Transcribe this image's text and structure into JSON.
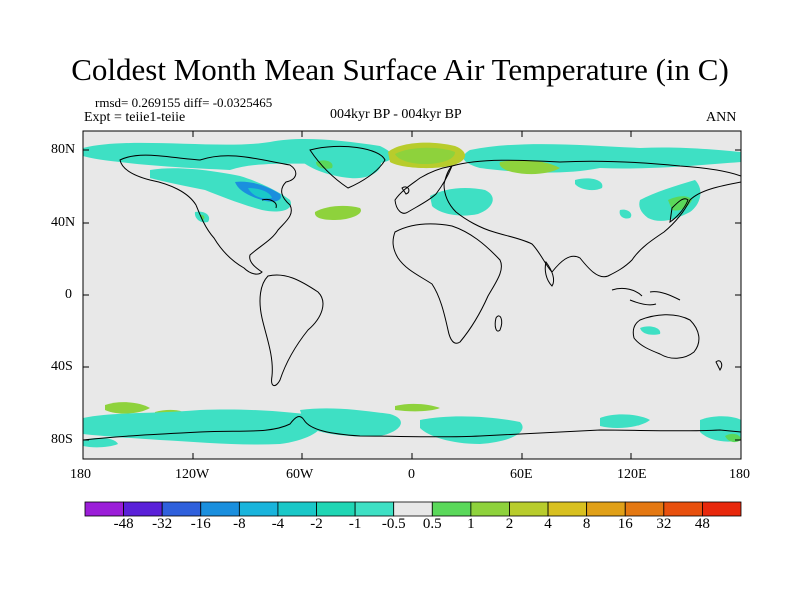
{
  "title": "Coldest Month Mean Surface Air Temperature (in C)",
  "stats": {
    "rmsd_diff": "rmsd= 0.269155 diff= -0.0325465",
    "expt": "Expt = teiie1-teiie",
    "period": "004kyr BP - 004kyr BP",
    "season": "ANN"
  },
  "axes": {
    "y_ticks": [
      "80N",
      "40N",
      "0",
      "40S",
      "80S"
    ],
    "x_ticks": [
      "180",
      "120W",
      "60W",
      "0",
      "60E",
      "120E",
      "180"
    ]
  },
  "colorbar": {
    "colors": [
      "#9b1ed8",
      "#5a20d8",
      "#2f60dc",
      "#1a8fde",
      "#19b4dc",
      "#1ac8c8",
      "#1fd6b4",
      "#3ee0c4",
      "#e8e8e8",
      "#5ad85a",
      "#8ed23c",
      "#b8cc2c",
      "#d8c020",
      "#e0a018",
      "#e47812",
      "#e8500e",
      "#e8280c"
    ],
    "labels": [
      "-48",
      "-32",
      "-16",
      "-8",
      "-4",
      "-2",
      "-1",
      "-0.5",
      "0.5",
      "1",
      "2",
      "4",
      "8",
      "16",
      "32",
      "48"
    ]
  },
  "colors": {
    "background_land_ocean": "#e8e8e8",
    "negative_small": "#3ee0c4",
    "negative_medium": "#1ac8c8",
    "negative_large": "#1a8fde",
    "positive_small": "#5ad85a",
    "positive_medium": "#8ed23c",
    "positive_large": "#b8cc2c",
    "coastline": "#000000"
  }
}
